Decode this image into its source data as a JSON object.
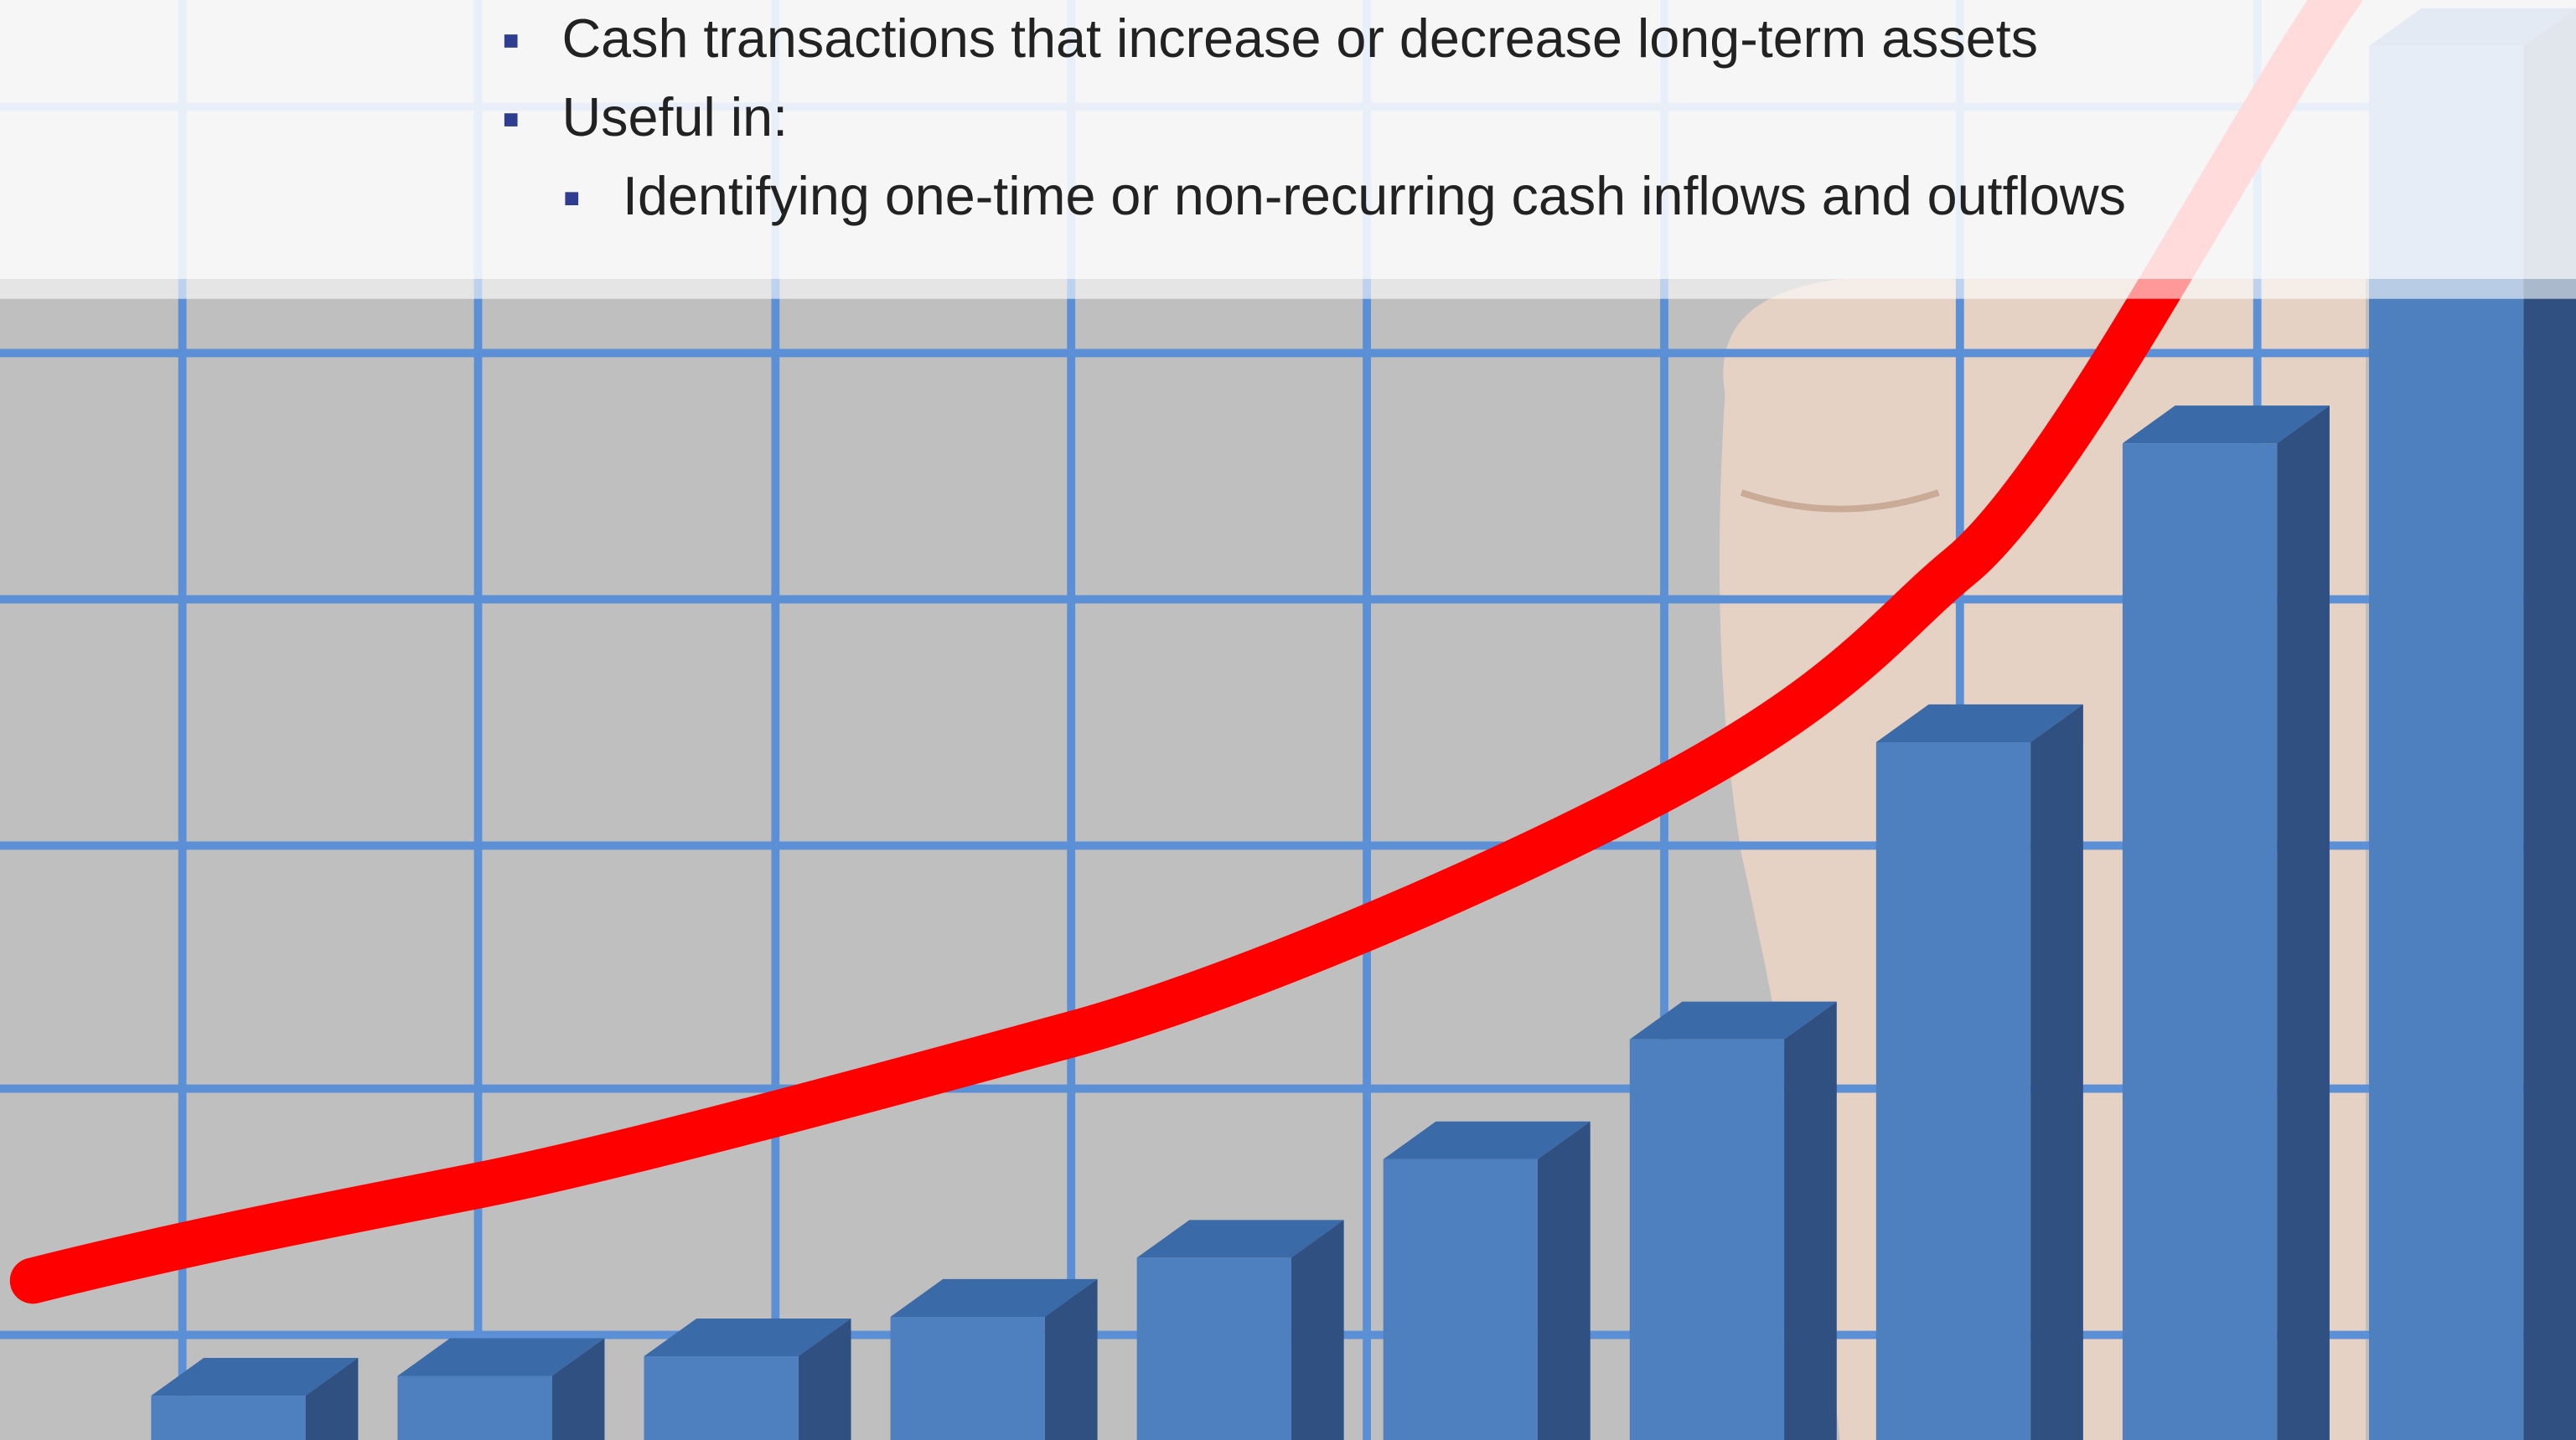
{
  "bullets": [
    {
      "text": "Cash transactions that increase or decrease long-term assets"
    },
    {
      "text": "Useful in:",
      "sub": [
        {
          "text": "Identifying one-time or non-recurring cash inflows and outflows"
        }
      ]
    }
  ]
}
